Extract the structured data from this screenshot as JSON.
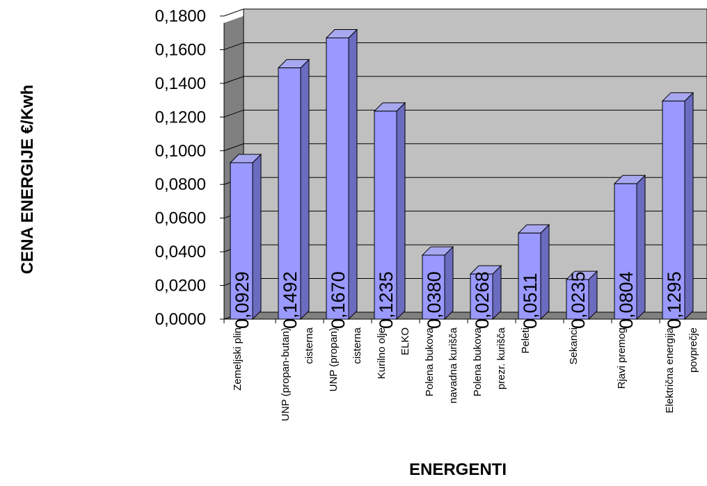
{
  "chart_data": {
    "type": "bar",
    "title": "",
    "xlabel": "ENERGENTI",
    "ylabel": "CENA ENERGIJE €/Kwh",
    "ylim": [
      0,
      0.18
    ],
    "y_ticks": [
      "0,0000",
      "0,0200",
      "0,0400",
      "0,0600",
      "0,0800",
      "0,1000",
      "0,1200",
      "0,1400",
      "0,1600",
      "0,1800"
    ],
    "categories": [
      [
        "Zemeljski plin"
      ],
      [
        "UNP (propan-butan)",
        "cisterna"
      ],
      [
        "UNP  (propan)",
        "cisterna"
      ],
      [
        "Kurilno olje",
        "ELKO"
      ],
      [
        "Polena bukova",
        "navadna kurišča"
      ],
      [
        "Polena bukova",
        "prezr. kurišča"
      ],
      [
        "Peleti"
      ],
      [
        "Sekanci"
      ],
      [
        "Rjavi premog"
      ],
      [
        "Električna energija",
        "povprečje"
      ]
    ],
    "values": [
      0.0929,
      0.1492,
      0.167,
      0.1235,
      0.038,
      0.0268,
      0.0511,
      0.0235,
      0.0804,
      0.1295
    ],
    "data_labels": [
      "0,0929",
      "0,1492",
      "0,1670",
      "0,1235",
      "0,0380",
      "0,0268",
      "0,0511",
      "0,0235",
      "0,0804",
      "0,1295"
    ],
    "grid": true,
    "legend": "none",
    "style": "3d-column",
    "colors": {
      "bar_front": "#9999ff",
      "bar_top": "#a8a8f0",
      "bar_side": "#6b6bbf",
      "wall": "#c0c0c0",
      "wall_side": "#808080",
      "gridline": "#000000"
    }
  }
}
